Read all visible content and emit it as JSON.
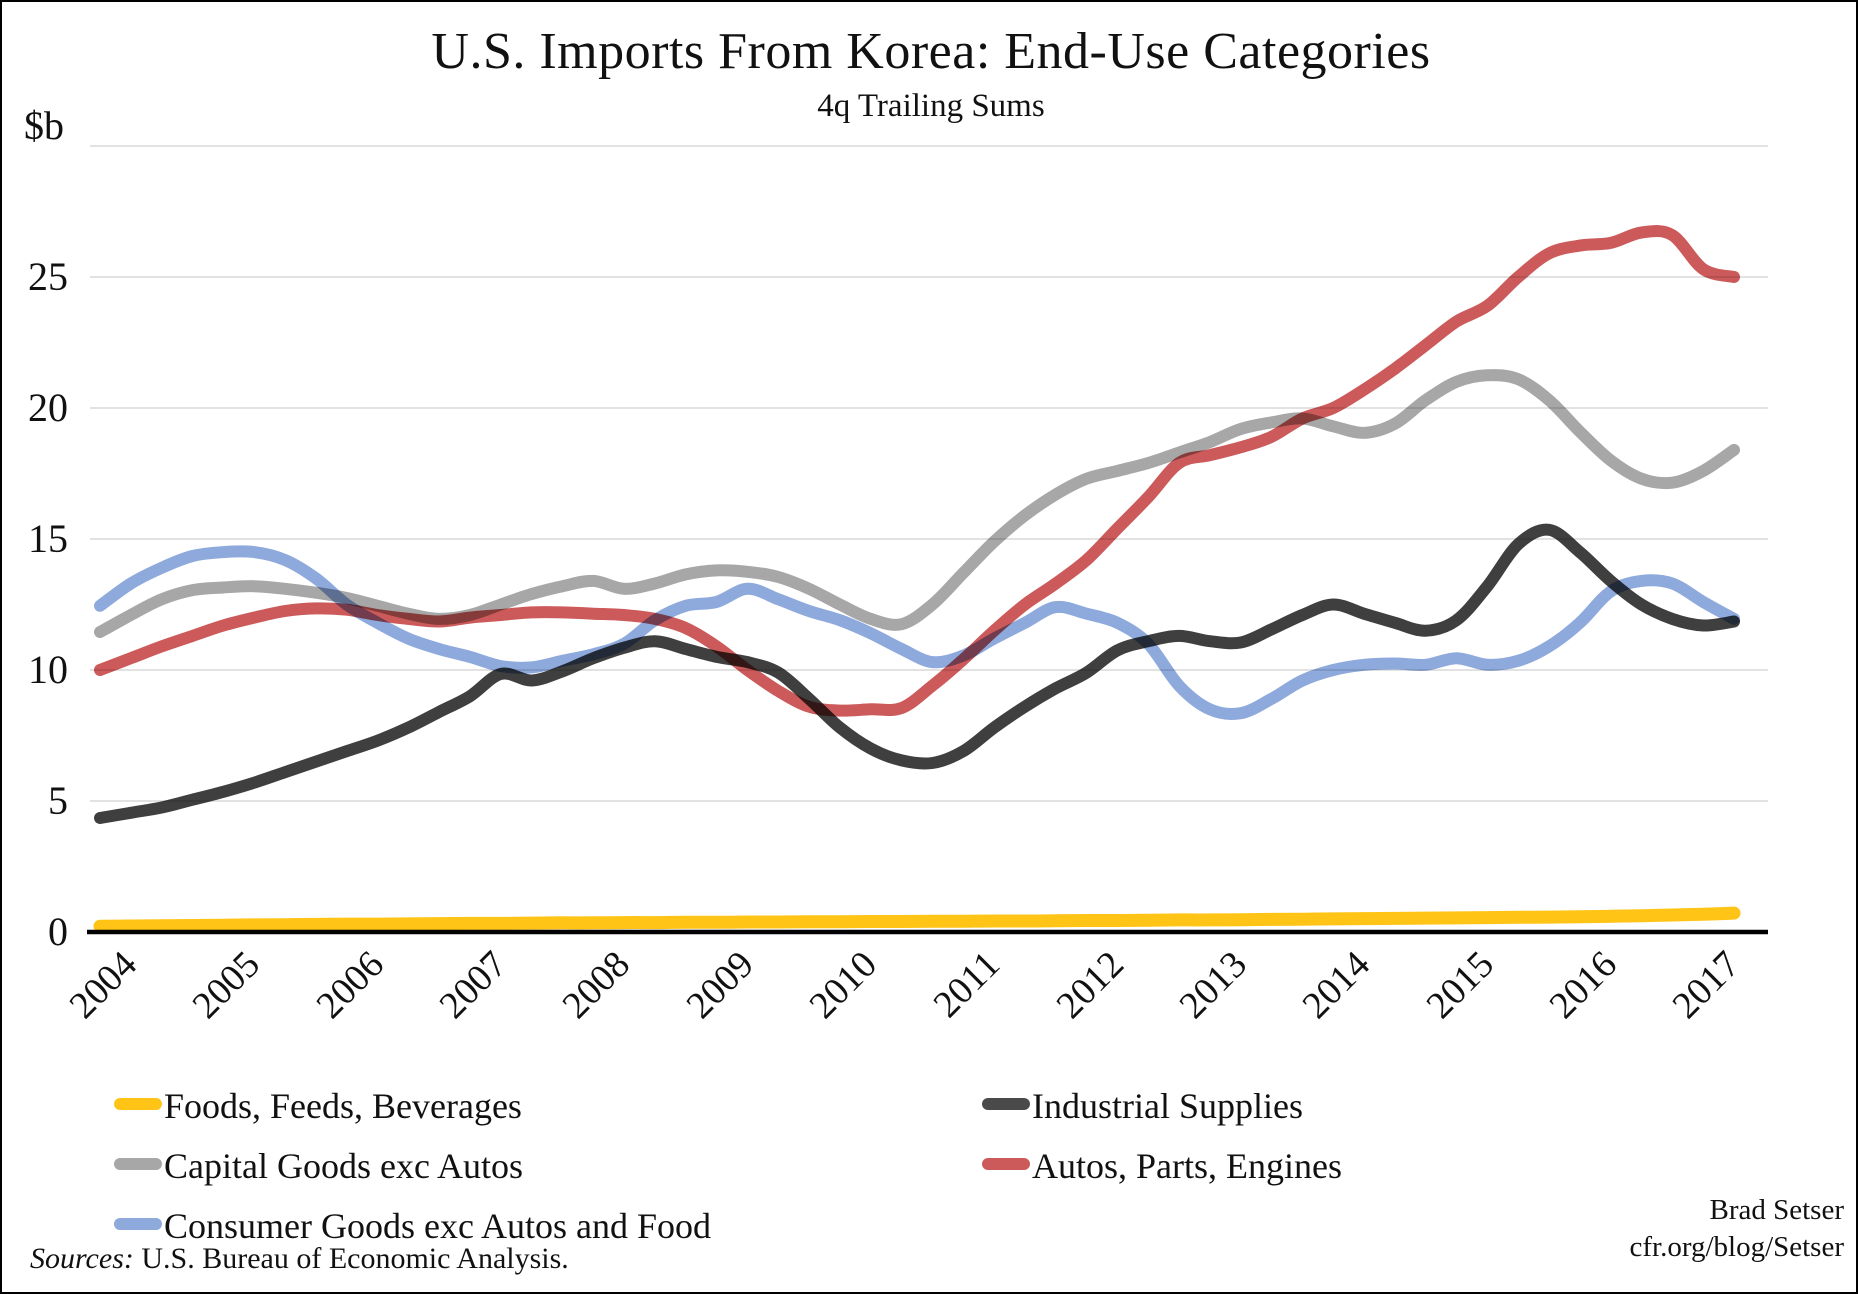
{
  "title": "U.S. Imports From Korea: End-Use Categories",
  "subtitle": "4q Trailing Sums",
  "y_axis": {
    "unit_label": "$b",
    "tick_values": [
      25,
      20,
      15,
      10,
      5,
      0
    ],
    "min": 0,
    "max": 30,
    "gridline_values": [
      5,
      10,
      15,
      20,
      25,
      30
    ]
  },
  "x_axis": {
    "years": [
      "2004",
      "2005",
      "2006",
      "2007",
      "2008",
      "2009",
      "2010",
      "2011",
      "2012",
      "2013",
      "2014",
      "2015",
      "2016",
      "2017"
    ]
  },
  "chart_data": {
    "type": "line",
    "x_start": 2004.0,
    "x_step": 0.25,
    "title": "U.S. Imports From Korea: End-Use Categories",
    "subtitle": "4q Trailing Sums",
    "ylabel": "$b",
    "ylim": [
      0,
      30
    ],
    "grid": "horizontal",
    "legend_position": "bottom",
    "series": [
      {
        "name": "Foods, Feeds, Beverages",
        "color": "#FFC415",
        "width": 13,
        "values": [
          0.22,
          0.23,
          0.24,
          0.25,
          0.26,
          0.27,
          0.28,
          0.29,
          0.3,
          0.3,
          0.31,
          0.32,
          0.33,
          0.33,
          0.34,
          0.35,
          0.35,
          0.36,
          0.36,
          0.37,
          0.37,
          0.38,
          0.38,
          0.39,
          0.39,
          0.4,
          0.4,
          0.41,
          0.41,
          0.42,
          0.42,
          0.43,
          0.44,
          0.44,
          0.45,
          0.46,
          0.46,
          0.47,
          0.48,
          0.49,
          0.5,
          0.51,
          0.52,
          0.53,
          0.54,
          0.55,
          0.56,
          0.57,
          0.58,
          0.6,
          0.62,
          0.65,
          0.68,
          0.72
        ]
      },
      {
        "name": "Capital Goods exc Autos",
        "color": "#A7A7A7",
        "width": 12,
        "values": [
          11.45,
          12.1,
          12.7,
          13.05,
          13.15,
          13.2,
          13.1,
          12.95,
          12.75,
          12.45,
          12.15,
          11.95,
          12.1,
          12.5,
          12.9,
          13.2,
          13.4,
          13.1,
          13.3,
          13.65,
          13.8,
          13.75,
          13.55,
          13.1,
          12.5,
          11.95,
          11.75,
          12.5,
          13.7,
          14.9,
          15.9,
          16.7,
          17.3,
          17.6,
          17.9,
          18.3,
          18.7,
          19.2,
          19.45,
          19.6,
          19.3,
          19.05,
          19.4,
          20.3,
          21.0,
          21.25,
          21.1,
          20.3,
          19.1,
          18.0,
          17.3,
          17.15,
          17.6,
          18.4
        ]
      },
      {
        "name": "Industrial Supplies",
        "color": "#3F3F3F",
        "width": 12,
        "values": [
          4.35,
          4.55,
          4.75,
          5.05,
          5.35,
          5.7,
          6.1,
          6.5,
          6.9,
          7.3,
          7.8,
          8.4,
          9.0,
          9.85,
          9.6,
          9.95,
          10.45,
          10.85,
          11.1,
          10.8,
          10.5,
          10.3,
          9.9,
          8.9,
          7.8,
          7.0,
          6.55,
          6.45,
          6.9,
          7.8,
          8.6,
          9.3,
          9.9,
          10.75,
          11.1,
          11.3,
          11.1,
          11.05,
          11.55,
          12.1,
          12.5,
          12.15,
          11.8,
          11.5,
          11.9,
          13.2,
          14.8,
          15.35,
          14.5,
          13.4,
          12.5,
          11.95,
          11.7,
          11.85
        ]
      },
      {
        "name": "Consumer Goods exc Autos and Food",
        "color": "#8EA9DC",
        "width": 12,
        "values": [
          12.45,
          13.3,
          13.9,
          14.35,
          14.5,
          14.5,
          14.2,
          13.5,
          12.5,
          11.8,
          11.2,
          10.8,
          10.5,
          10.15,
          10.1,
          10.35,
          10.6,
          11.0,
          11.9,
          12.45,
          12.6,
          13.1,
          12.7,
          12.25,
          11.9,
          11.4,
          10.8,
          10.3,
          10.55,
          11.2,
          11.8,
          12.4,
          12.15,
          11.8,
          11.0,
          9.4,
          8.5,
          8.35,
          8.9,
          9.6,
          10.0,
          10.2,
          10.25,
          10.2,
          10.45,
          10.2,
          10.35,
          10.9,
          11.8,
          13.0,
          13.4,
          13.3,
          12.6,
          11.95
        ]
      },
      {
        "name": "Autos, Parts, Engines",
        "color": "#CD5A5A",
        "width": 12,
        "values": [
          10.0,
          10.45,
          10.9,
          11.3,
          11.7,
          12.0,
          12.25,
          12.35,
          12.3,
          12.1,
          11.95,
          11.85,
          12.0,
          12.1,
          12.2,
          12.2,
          12.15,
          12.1,
          11.95,
          11.6,
          10.9,
          10.0,
          9.2,
          8.6,
          8.45,
          8.5,
          8.55,
          9.4,
          10.4,
          11.5,
          12.5,
          13.3,
          14.2,
          15.4,
          16.6,
          17.9,
          18.2,
          18.5,
          18.9,
          19.6,
          20.0,
          20.7,
          21.5,
          22.4,
          23.3,
          23.9,
          25.0,
          25.9,
          26.2,
          26.3,
          26.7,
          26.6,
          25.3,
          25.0
        ]
      }
    ]
  },
  "legend": {
    "items": [
      {
        "label": "Foods, Feeds, Beverages",
        "color": "#FFC415",
        "column": 0,
        "row": 0
      },
      {
        "label": "Capital Goods exc Autos",
        "color": "#A7A7A7",
        "column": 0,
        "row": 1
      },
      {
        "label": "Consumer Goods exc Autos and Food",
        "color": "#8EA9DC",
        "column": 0,
        "row": 2
      },
      {
        "label": "Industrial Supplies",
        "color": "#4A4A4A",
        "column": 1,
        "row": 0
      },
      {
        "label": "Autos, Parts, Engines",
        "color": "#CD5A5A",
        "column": 1,
        "row": 1
      }
    ]
  },
  "footer": {
    "sources_label": "Sources:",
    "sources_text": " U.S. Bureau of Economic Analysis.",
    "attribution_line1": "Brad Setser",
    "attribution_line2": "cfr.org/blog/Setser"
  },
  "colors": {
    "gridline": "#D9D9D9",
    "axis": "#000000",
    "text": "#111111"
  }
}
